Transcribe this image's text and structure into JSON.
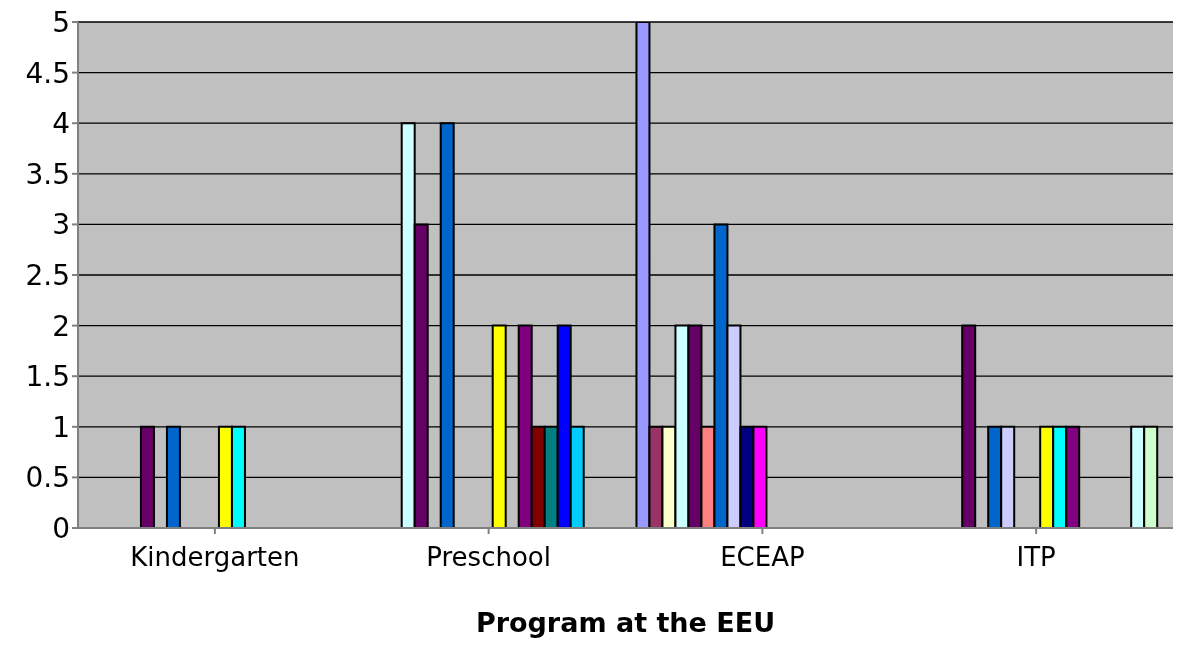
{
  "chart_data": {
    "type": "bar",
    "xlabel": "Program at the EEU",
    "categories": [
      "Kindergarten",
      "Preschool",
      "ECEAP",
      "ITP"
    ],
    "ylim": [
      0,
      5
    ],
    "yticks": [
      0,
      0.5,
      1,
      1.5,
      2,
      2.5,
      3,
      3.5,
      4,
      4.5,
      5
    ],
    "grid": "y",
    "legend": false,
    "series": [
      {
        "color": "#9999ff",
        "values": [
          null,
          null,
          5,
          null
        ]
      },
      {
        "color": "#993366",
        "values": [
          null,
          null,
          1,
          null
        ]
      },
      {
        "color": "#ffffcc",
        "values": [
          null,
          null,
          1,
          null
        ]
      },
      {
        "color": "#ccffff",
        "values": [
          null,
          4,
          2,
          null
        ]
      },
      {
        "color": "#660066",
        "values": [
          1,
          3,
          2,
          2
        ]
      },
      {
        "color": "#ff8080",
        "values": [
          null,
          null,
          1,
          null
        ]
      },
      {
        "color": "#0066cc",
        "values": [
          1,
          4,
          3,
          1
        ]
      },
      {
        "color": "#ccccff",
        "values": [
          null,
          null,
          2,
          1
        ]
      },
      {
        "color": "#000080",
        "values": [
          null,
          null,
          1,
          null
        ]
      },
      {
        "color": "#ff00ff",
        "values": [
          null,
          null,
          1,
          null
        ]
      },
      {
        "color": "#ffff00",
        "values": [
          1,
          2,
          0,
          1
        ]
      },
      {
        "color": "#00ffff",
        "values": [
          1,
          null,
          0,
          1
        ]
      },
      {
        "color": "#800080",
        "values": [
          null,
          2,
          0,
          1
        ]
      },
      {
        "color": "#800000",
        "values": [
          null,
          1,
          0,
          null
        ]
      },
      {
        "color": "#008080",
        "values": [
          null,
          1,
          0,
          null
        ]
      },
      {
        "color": "#0000ff",
        "values": [
          null,
          2,
          0,
          null
        ]
      },
      {
        "color": "#00ccff",
        "values": [
          null,
          1,
          0,
          null
        ]
      },
      {
        "color": "#ccffff",
        "values": [
          null,
          null,
          0,
          1
        ]
      },
      {
        "color": "#ccffcc",
        "values": [
          null,
          null,
          0,
          1
        ]
      }
    ]
  }
}
